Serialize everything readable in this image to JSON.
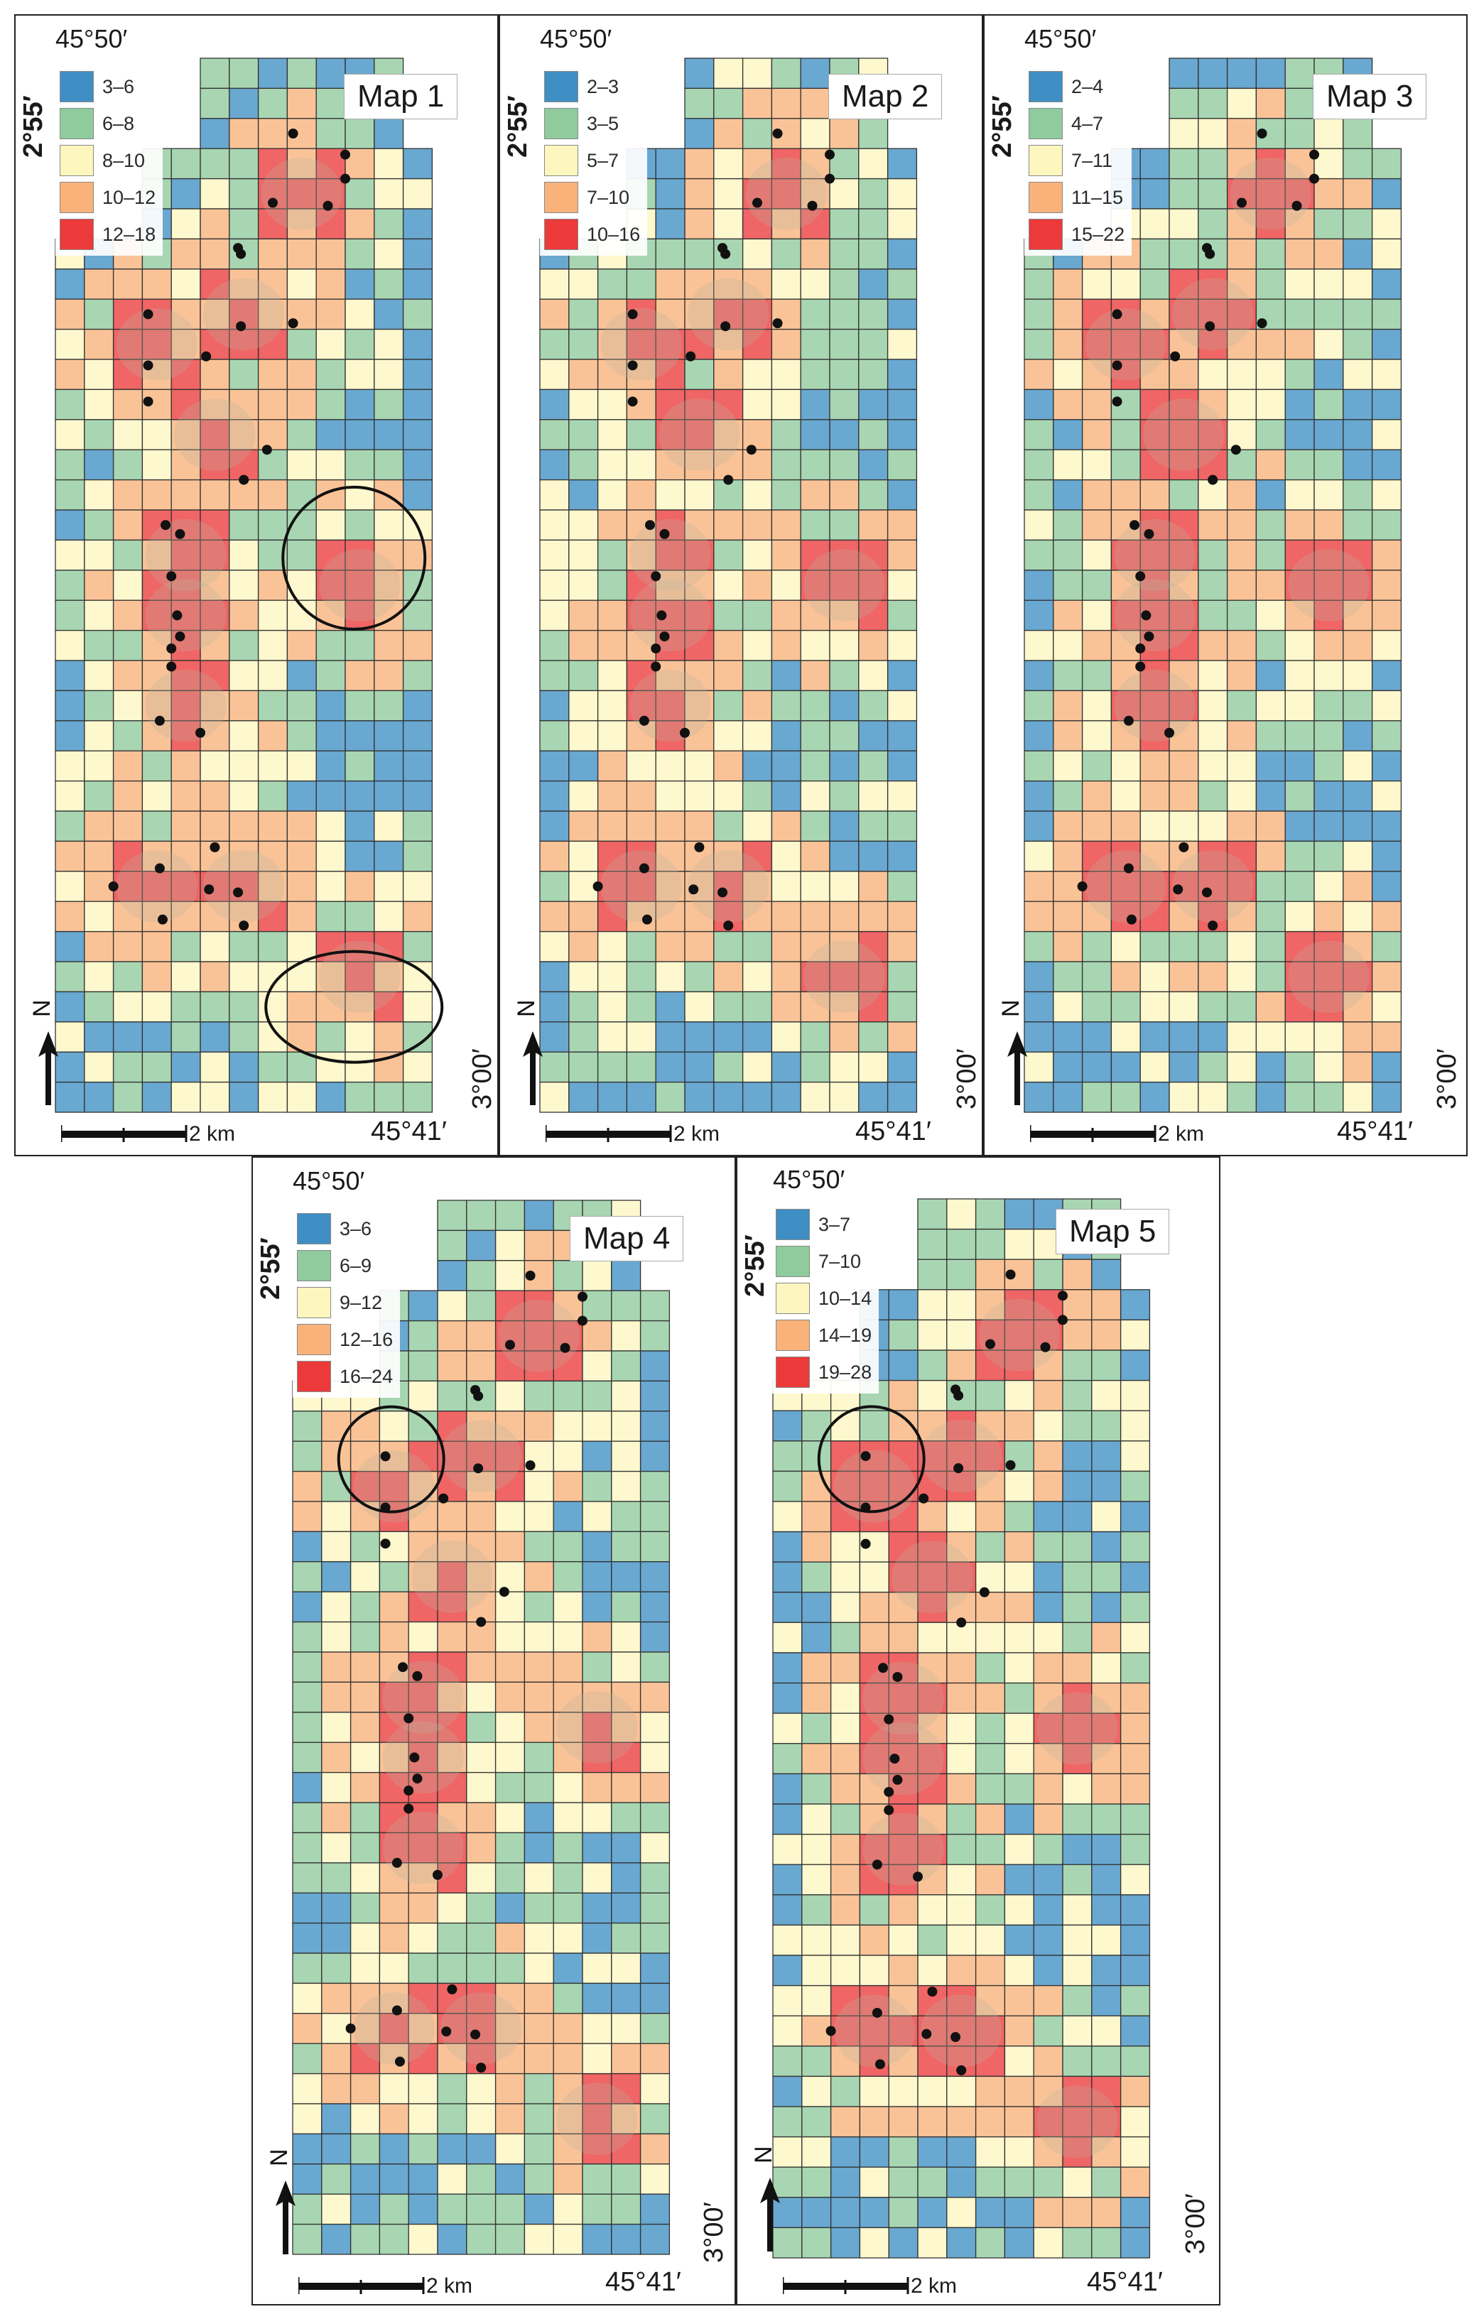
{
  "colors": {
    "c1": "#3f8fc4",
    "c2": "#8fcb9c",
    "c3": "#fdf6bf",
    "c4": "#f8b27a",
    "c5": "#ec3a3a",
    "relief": "#b9b39e",
    "point": "#111111"
  },
  "maps": [
    {
      "title": "Map 1",
      "top_coord": "45°50′",
      "lat_top": "2°55′",
      "lat_bottom": "3°00′",
      "lon_bottom": "45°41′",
      "scale_label": "2 km",
      "north_label": "N",
      "legend": [
        {
          "label": "3‒6"
        },
        {
          "label": "6‒8"
        },
        {
          "label": "8‒10"
        },
        {
          "label": "10‒12"
        },
        {
          "label": "12‒18"
        }
      ]
    },
    {
      "title": "Map 2",
      "top_coord": "45°50′",
      "lat_top": "2°55′",
      "lat_bottom": "3°00′",
      "lon_bottom": "45°41′",
      "scale_label": "2 km",
      "north_label": "N",
      "legend": [
        {
          "label": "2‒3"
        },
        {
          "label": "3‒5"
        },
        {
          "label": "5‒7"
        },
        {
          "label": "7‒10"
        },
        {
          "label": "10‒16"
        }
      ]
    },
    {
      "title": "Map 3",
      "top_coord": "45°50′",
      "lat_top": "2°55′",
      "lat_bottom": "3°00′",
      "lon_bottom": "45°41′",
      "scale_label": "2 km",
      "north_label": "N",
      "legend": [
        {
          "label": "2‒4"
        },
        {
          "label": "4‒7"
        },
        {
          "label": "7‒11"
        },
        {
          "label": "11‒15"
        },
        {
          "label": "15‒22"
        }
      ]
    },
    {
      "title": "Map 4",
      "top_coord": "45°50′",
      "lat_top": "2°55′",
      "lat_bottom": "3°00′",
      "lon_bottom": "45°41′",
      "scale_label": "2 km",
      "north_label": "N",
      "legend": [
        {
          "label": "3‒6"
        },
        {
          "label": "6‒9"
        },
        {
          "label": "9‒12"
        },
        {
          "label": "12‒16"
        },
        {
          "label": "16‒24"
        }
      ]
    },
    {
      "title": "Map 5",
      "top_coord": "45°50′",
      "lat_top": "2°55′",
      "lat_bottom": "3°00′",
      "lon_bottom": "45°41′",
      "scale_label": "2 km",
      "north_label": "N",
      "legend": [
        {
          "label": "3‒7"
        },
        {
          "label": "7‒10"
        },
        {
          "label": "10‒14"
        },
        {
          "label": "14‒19"
        },
        {
          "label": "19‒28"
        }
      ]
    }
  ]
}
